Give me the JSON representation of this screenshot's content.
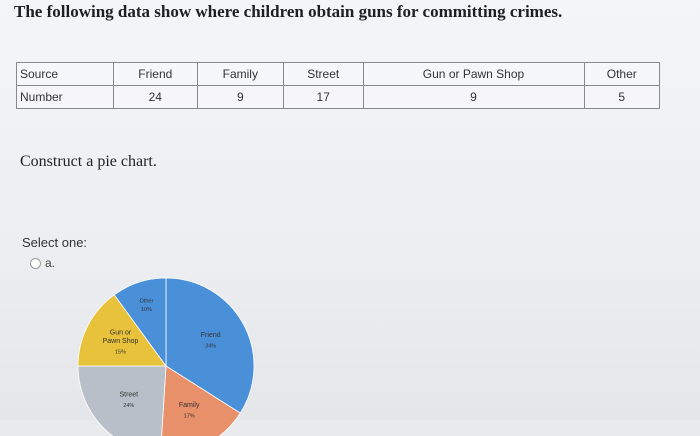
{
  "question": "The following data show where children obtain guns for committing crimes.",
  "table": {
    "row_headers": [
      "Source",
      "Number"
    ],
    "sources": [
      "Friend",
      "Family",
      "Street",
      "Gun or Pawn Shop",
      "Other"
    ],
    "numbers": [
      "24",
      "9",
      "17",
      "9",
      "5"
    ]
  },
  "instruction": "Construct a pie chart.",
  "select_label": "Select one:",
  "option_a": "a.",
  "chart_data": {
    "type": "pie",
    "slices": [
      {
        "label": "Friend",
        "percent_label": "34%",
        "value": 34,
        "color": "#4a90d9"
      },
      {
        "label": "Family",
        "percent_label": "17%",
        "value": 17,
        "color": "#e8906a"
      },
      {
        "label": "Street",
        "percent_label": "24%",
        "value": 24,
        "color": "#b9bfc9"
      },
      {
        "label": "Gun or Pawn Shop",
        "percent_label": "15%",
        "value": 15,
        "color": "#e8c23a"
      },
      {
        "label": "Other",
        "percent_label": "10%",
        "value": 10,
        "color": "#4a90d9"
      }
    ]
  }
}
